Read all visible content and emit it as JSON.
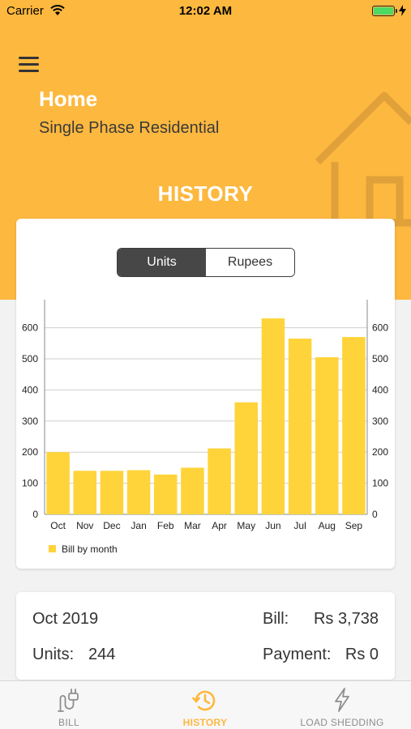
{
  "status": {
    "carrier": "Carrier",
    "time": "12:02 AM"
  },
  "header": {
    "title": "Home",
    "subtitle": "Single Phase Residential",
    "section_title": "HISTORY"
  },
  "toggle": {
    "units_label": "Units",
    "rupees_label": "Rupees",
    "selected": "Units"
  },
  "chart_data": {
    "type": "bar",
    "categories": [
      "Oct",
      "Nov",
      "Dec",
      "Jan",
      "Feb",
      "Mar",
      "Apr",
      "May",
      "Jun",
      "Jul",
      "Aug",
      "Sep"
    ],
    "series": [
      {
        "name": "Bill by month",
        "values": [
          200,
          140,
          140,
          142,
          128,
          150,
          212,
          360,
          630,
          565,
          505,
          570
        ]
      }
    ],
    "ylim": [
      0,
      690
    ],
    "yticks": [
      0,
      100,
      200,
      300,
      400,
      500,
      600
    ],
    "dual_axis": true,
    "grid": true,
    "legend": "bottom-left",
    "color": "#ffd43a"
  },
  "summary": {
    "month": "Oct 2019",
    "bill_label": "Bill:",
    "bill_value": "Rs 3,738",
    "units_label": "Units:",
    "units_value": "244",
    "payment_label": "Payment:",
    "payment_value": "Rs 0"
  },
  "tabs": [
    {
      "label": "BILL",
      "icon": "plug-icon",
      "active": false
    },
    {
      "label": "HISTORY",
      "icon": "history-icon",
      "active": true
    },
    {
      "label": "LOAD SHEDDING",
      "icon": "lightning-icon",
      "active": false
    }
  ],
  "colors": {
    "accent": "#fdb83f",
    "bar": "#ffd43a"
  }
}
